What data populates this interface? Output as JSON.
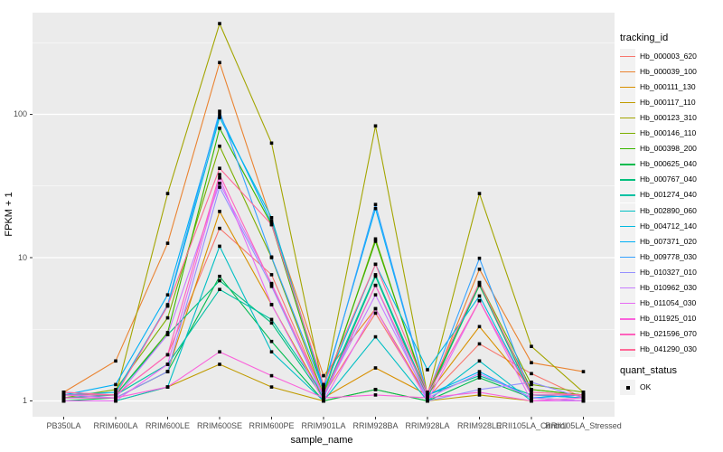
{
  "ui": {
    "background_color": "#FFFFFF",
    "panel_color": "#EBEBEB",
    "gridline_color": "#FFFFFF",
    "tick_text_color": "#4D4D4D",
    "point_color": "#000000"
  },
  "chart_data": {
    "type": "line",
    "title": "",
    "xlabel": "sample_name",
    "ylabel": "FPKM + 1",
    "y_scale": "log10",
    "y_ticks": [
      "1",
      "10",
      "100"
    ],
    "y_tick_values": [
      1,
      10,
      100
    ],
    "y_minor_values": [
      3.162,
      31.62,
      316.2
    ],
    "ylim": [
      1,
      512
    ],
    "grid": true,
    "legend_position": "right",
    "categories": [
      "PB350LA",
      "RRIM600LA",
      "RRIM600LE",
      "RRIM600SE",
      "RRIM600PE",
      "RRIM901LA",
      "RRIM928BA",
      "RRIM928LA",
      "RRIM928LE",
      "RRII105LA_Control",
      "RRII105LA_Stressed"
    ],
    "legend_title": "tracking_id",
    "quant_legend": {
      "title": "quant_status",
      "items": [
        "OK"
      ]
    },
    "series": [
      {
        "name": "Hb_000003_620",
        "color": "#F8766D",
        "values": [
          1.1,
          1.1,
          2.1,
          16,
          7.6,
          1.1,
          4.1,
          1.05,
          2.5,
          1.55,
          1.05
        ]
      },
      {
        "name": "Hb_000039_100",
        "color": "#EA8331",
        "values": [
          1.15,
          1.9,
          12.6,
          230,
          18,
          1.5,
          4.4,
          1.05,
          8.3,
          1.85,
          1.6
        ]
      },
      {
        "name": "Hb_000111_130",
        "color": "#D89000",
        "values": [
          1.05,
          1.05,
          1.6,
          21,
          4.7,
          1.05,
          1.7,
          1.1,
          3.3,
          1.2,
          1.1
        ]
      },
      {
        "name": "Hb_000117_110",
        "color": "#C09B00",
        "values": [
          1.0,
          1.0,
          1.25,
          1.8,
          1.25,
          1.0,
          1.2,
          1.0,
          1.1,
          1.0,
          1.0
        ]
      },
      {
        "name": "Hb_000123_310",
        "color": "#A3A500",
        "values": [
          1.1,
          1.1,
          28,
          430,
          63,
          1.2,
          83,
          1.1,
          28,
          2.4,
          1.15
        ]
      },
      {
        "name": "Hb_000146_110",
        "color": "#7CAE00",
        "values": [
          1.05,
          1.2,
          3.8,
          60,
          10,
          1.1,
          13.5,
          1.05,
          6.7,
          1.3,
          1.15
        ]
      },
      {
        "name": "Hb_000398_200",
        "color": "#39B600",
        "values": [
          1.1,
          1.1,
          3.0,
          80,
          17,
          1.15,
          13.0,
          1.1,
          6.4,
          1.2,
          1.1
        ]
      },
      {
        "name": "Hb_000625_040",
        "color": "#00BB4E",
        "values": [
          1.0,
          1.05,
          1.6,
          7.4,
          2.6,
          1.0,
          1.2,
          1.0,
          1.45,
          1.05,
          1.0
        ]
      },
      {
        "name": "Hb_000767_040",
        "color": "#00BF7D",
        "values": [
          1.05,
          1.1,
          2.9,
          6.9,
          3.5,
          1.05,
          7.4,
          1.05,
          6.5,
          1.1,
          1.05
        ]
      },
      {
        "name": "Hb_001274_040",
        "color": "#00C1A3",
        "values": [
          1.1,
          1.1,
          1.8,
          6.0,
          3.7,
          1.1,
          7.6,
          1.1,
          1.5,
          1.1,
          1.1
        ]
      },
      {
        "name": "Hb_002890_060",
        "color": "#00BFC4",
        "values": [
          1.0,
          1.0,
          1.25,
          12,
          2.2,
          1.0,
          2.8,
          1.0,
          1.9,
          1.0,
          1.0
        ]
      },
      {
        "name": "Hb_004712_140",
        "color": "#00BAE0",
        "values": [
          1.1,
          1.15,
          4.6,
          95,
          19,
          1.2,
          9.0,
          1.65,
          5.4,
          1.1,
          1.05
        ]
      },
      {
        "name": "Hb_007371_020",
        "color": "#00B0F6",
        "values": [
          1.1,
          1.3,
          5.5,
          100,
          17.5,
          1.25,
          22,
          1.1,
          1.6,
          1.05,
          1.1
        ]
      },
      {
        "name": "Hb_009778_030",
        "color": "#35A2FF",
        "values": [
          1.15,
          1.1,
          4.7,
          105,
          10.1,
          1.2,
          23.5,
          1.1,
          9.9,
          1.1,
          1.1
        ]
      },
      {
        "name": "Hb_010327_010",
        "color": "#9590FF",
        "values": [
          1.05,
          1.05,
          1.6,
          31,
          6.3,
          1.05,
          6.4,
          1.0,
          1.2,
          1.35,
          1.05
        ]
      },
      {
        "name": "Hb_010962_030",
        "color": "#C77CFF",
        "values": [
          1.1,
          1.05,
          2.9,
          33,
          6.6,
          1.1,
          5.5,
          1.05,
          1.55,
          1.05,
          1.0
        ]
      },
      {
        "name": "Hb_011054_030",
        "color": "#E76BF3",
        "values": [
          1.0,
          1.0,
          1.8,
          36,
          4.7,
          1.0,
          4.4,
          1.0,
          5.0,
          1.0,
          1.0
        ]
      },
      {
        "name": "Hb_011925_010",
        "color": "#FA62DB",
        "values": [
          1.05,
          1.05,
          1.25,
          2.2,
          1.5,
          1.05,
          1.1,
          1.05,
          1.15,
          1.0,
          1.05
        ]
      },
      {
        "name": "Hb_021596_070",
        "color": "#FF62BC",
        "values": [
          1.1,
          1.1,
          2.1,
          38,
          6.5,
          1.1,
          6.4,
          1.1,
          5.0,
          1.1,
          1.1
        ]
      },
      {
        "name": "Hb_041290_030",
        "color": "#FF6A98",
        "values": [
          1.15,
          1.1,
          4.6,
          42,
          17,
          1.3,
          9.0,
          1.15,
          6.7,
          1.15,
          1.1
        ]
      }
    ]
  }
}
